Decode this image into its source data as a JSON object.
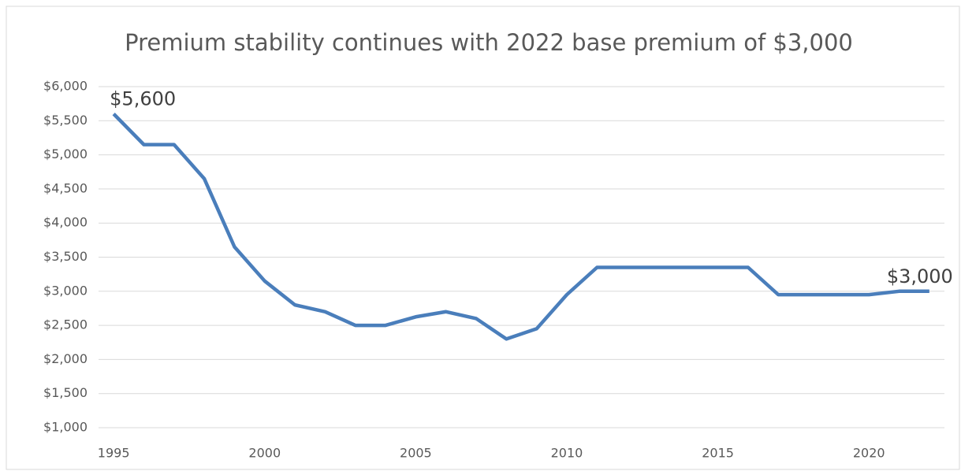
{
  "chart_data": {
    "type": "line",
    "title": "Premium stability continues with 2022 base premium of $3,000",
    "x": [
      1995,
      1996,
      1997,
      1998,
      1999,
      2000,
      2001,
      2002,
      2003,
      2004,
      2005,
      2006,
      2007,
      2008,
      2009,
      2010,
      2011,
      2012,
      2013,
      2014,
      2015,
      2016,
      2017,
      2018,
      2019,
      2020,
      2021,
      2022
    ],
    "series": [
      {
        "name": "Base premium",
        "color": "#4a7ebb",
        "values": [
          5600,
          5150,
          5150,
          4650,
          3650,
          3150,
          2800,
          2700,
          2500,
          2500,
          2625,
          2700,
          2600,
          2300,
          2450,
          2950,
          3350,
          3350,
          3350,
          3350,
          3350,
          3350,
          2950,
          2950,
          2950,
          2950,
          3000,
          3000
        ],
        "value_labels": [
          "$5,600",
          null,
          null,
          null,
          null,
          null,
          null,
          null,
          null,
          null,
          null,
          null,
          null,
          null,
          null,
          null,
          null,
          null,
          null,
          null,
          null,
          null,
          null,
          null,
          null,
          null,
          null,
          "$3,000"
        ]
      }
    ],
    "xlim": [
      1994.5,
      2022.5
    ],
    "xticks": [
      1995,
      2000,
      2005,
      2010,
      2015,
      2020
    ],
    "ylim": [
      1000,
      6000
    ],
    "yticks": [
      {
        "value": 1000,
        "label": "$1,000"
      },
      {
        "value": 1500,
        "label": "$1,500"
      },
      {
        "value": 2000,
        "label": "$2,000"
      },
      {
        "value": 2500,
        "label": "$2,500"
      },
      {
        "value": 3000,
        "label": "$3,000"
      },
      {
        "value": 3500,
        "label": "$3,500"
      },
      {
        "value": 4000,
        "label": "$4,000"
      },
      {
        "value": 4500,
        "label": "$4,500"
      },
      {
        "value": 5000,
        "label": "$5,000"
      },
      {
        "value": 5500,
        "label": "$5,500"
      },
      {
        "value": 6000,
        "label": "$6,000"
      }
    ],
    "grid": true
  }
}
